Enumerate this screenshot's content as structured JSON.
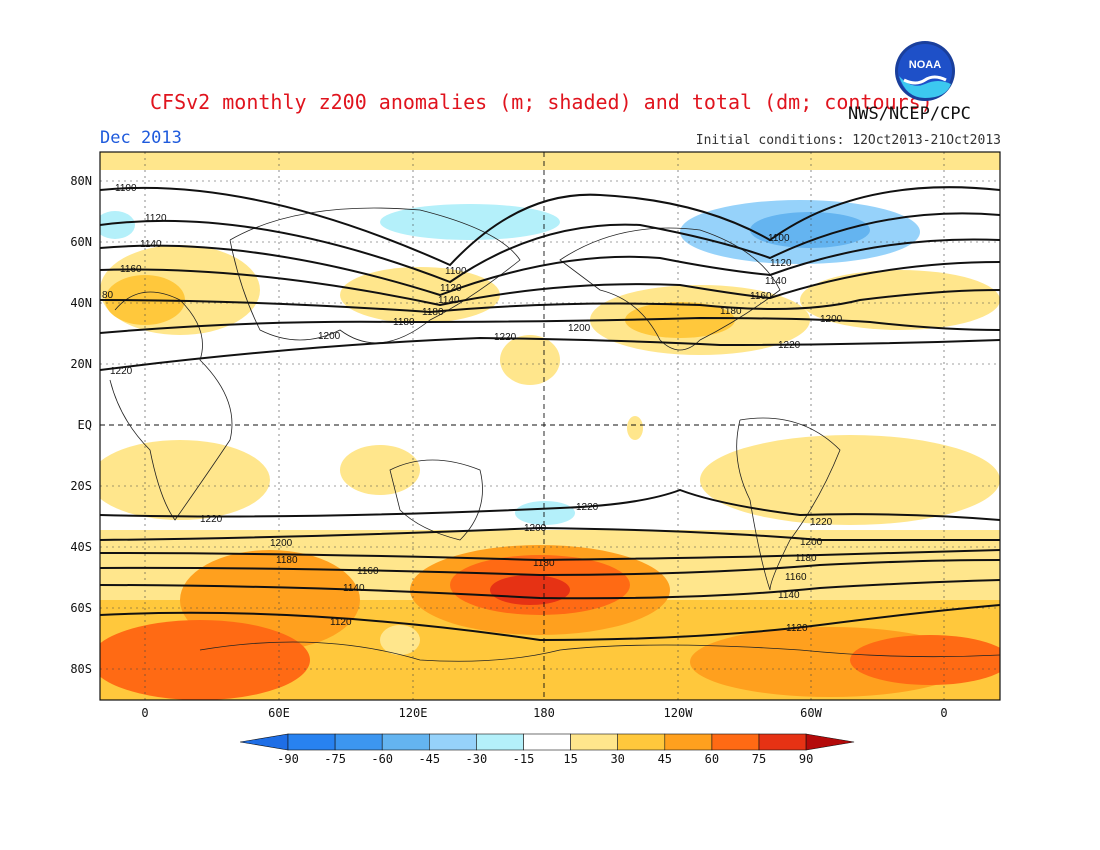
{
  "header": {
    "title": "CFSv2 monthly z200 anomalies (m; shaded) and total (dm; contours)",
    "agency": "NWS/NCEP/CPC",
    "month": "Dec 2013",
    "initial_conditions": "Initial conditions: 12Oct2013-21Oct2013",
    "logo_text": "NOAA"
  },
  "map": {
    "lat_ticks": [
      "80N",
      "60N",
      "40N",
      "20N",
      "EQ",
      "20S",
      "40S",
      "60S",
      "80S"
    ],
    "lon_ticks": [
      "0",
      "60E",
      "120E",
      "180",
      "120W",
      "60W",
      "0"
    ],
    "contour_labels": [
      "1100",
      "1120",
      "1140",
      "1160",
      "1180",
      "1200",
      "1220",
      "80",
      "1100",
      "1120",
      "1140",
      "1180",
      "1200",
      "1220",
      "1100",
      "1120",
      "1140",
      "1160",
      "1180",
      "1200",
      "1220",
      "1220",
      "1200",
      "1180",
      "1160",
      "1140",
      "1120",
      "1220",
      "1200",
      "1180",
      "1220",
      "1200",
      "1180",
      "1160",
      "1140",
      "1120"
    ]
  },
  "colorbar": {
    "ticks": [
      "-90",
      "-75",
      "-60",
      "-45",
      "-30",
      "-15",
      "15",
      "30",
      "45",
      "60",
      "75",
      "90"
    ],
    "colors": [
      "#1e6ee6",
      "#2882f0",
      "#3c96f0",
      "#64b4f0",
      "#96d2fa",
      "#b4f0fa",
      "#ffffff",
      "#ffe68c",
      "#ffc83c",
      "#ffa01e",
      "#ff6a14",
      "#e63214",
      "#b40a0a"
    ]
  }
}
